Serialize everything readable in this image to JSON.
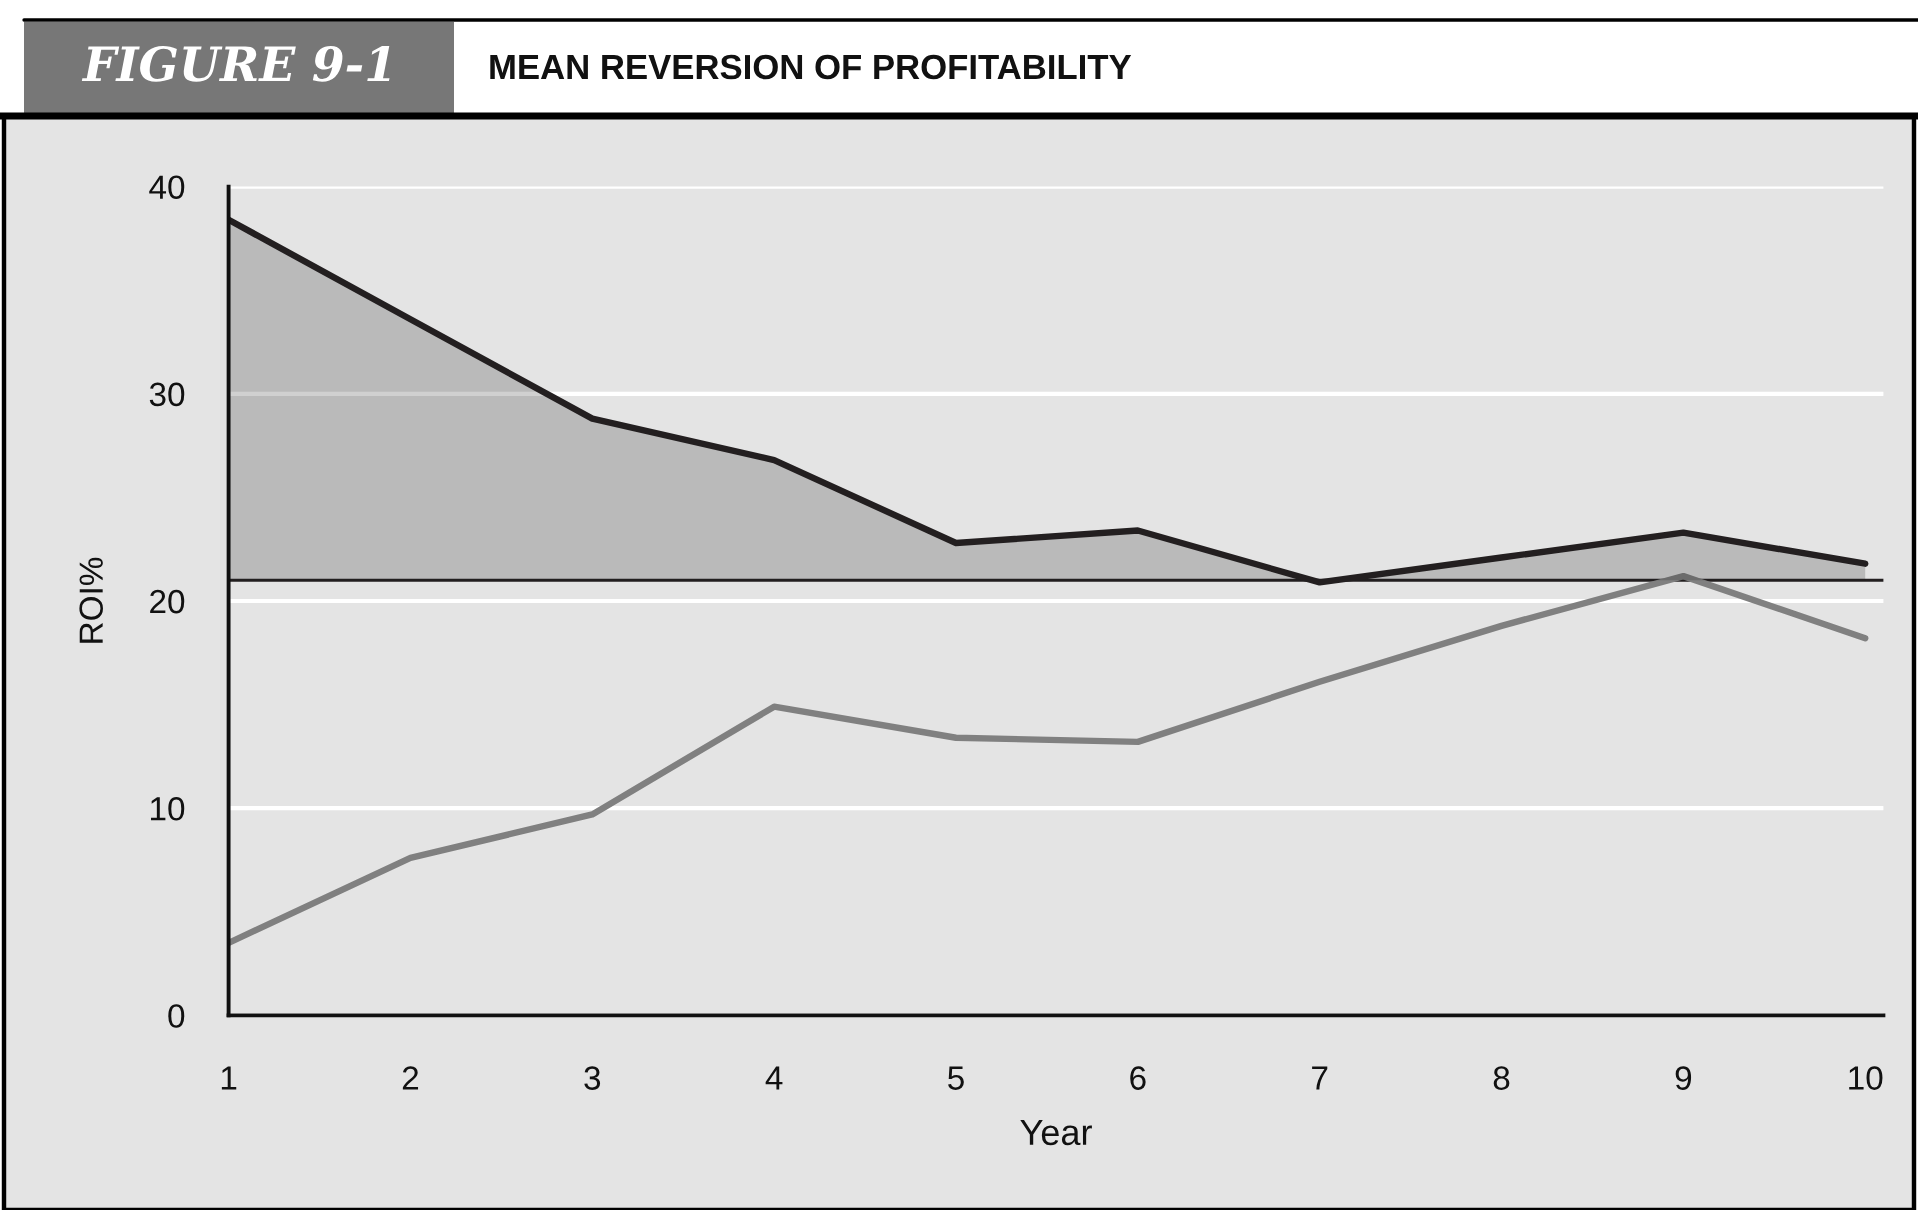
{
  "chart_data": {
    "type": "line",
    "title": "MEAN REVERSION OF PROFITABILITY",
    "annotations": [
      "FIGURE 9-1"
    ],
    "xlabel": "Year",
    "ylabel": "ROI%",
    "x": [
      1,
      2,
      3,
      4,
      5,
      6,
      7,
      8,
      9,
      10
    ],
    "xlim": [
      1,
      10.1
    ],
    "xticks": [
      1,
      2,
      3,
      4,
      5,
      6,
      7,
      8,
      9,
      10
    ],
    "ylim": [
      0,
      40
    ],
    "yticks": [
      0,
      10,
      20,
      30,
      40
    ],
    "grid": "y",
    "series": [
      {
        "type": "area",
        "color": "#231f20",
        "values": [
          38.4,
          33.6,
          28.8,
          26.8,
          22.8,
          23.4,
          20.9,
          22.1,
          23.3,
          21.8
        ]
      },
      {
        "color": "#808080",
        "values": [
          3.5,
          7.6,
          9.7,
          14.9,
          13.4,
          13.2,
          16.1,
          18.8,
          21.2,
          18.2
        ]
      }
    ],
    "ref_lines": [
      {
        "axis": "y",
        "value": 21,
        "color": "#231f20"
      }
    ]
  }
}
